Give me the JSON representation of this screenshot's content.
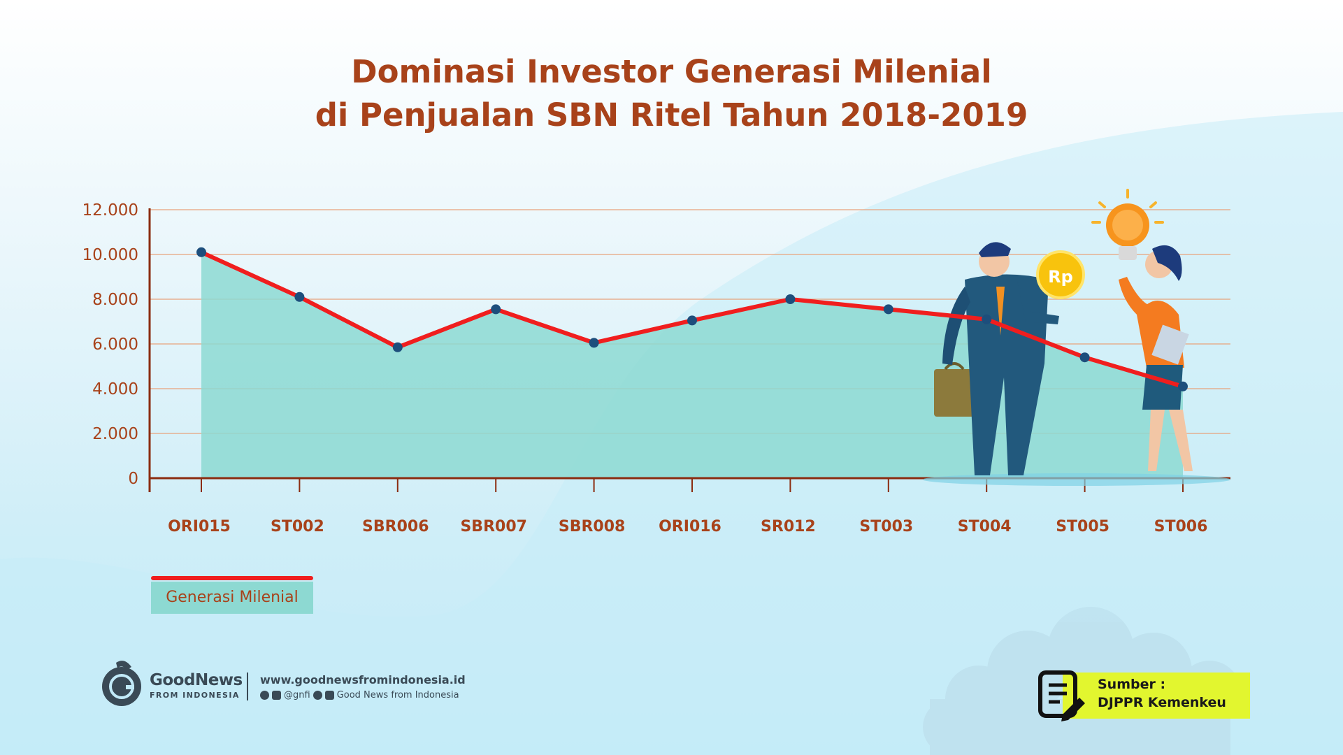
{
  "colors": {
    "title": "#a8421a",
    "line": "#f01e1e",
    "area": "#8dd9d2",
    "marker": "#1d4e7c",
    "source_box": "#e2f62f"
  },
  "chart_data": {
    "type": "area",
    "title_lines": [
      "Dominasi Investor Generasi Milenial",
      "di Penjualan SBN Ritel Tahun 2018-2019"
    ],
    "categories": [
      "ORI015",
      "ST002",
      "SBR006",
      "SBR007",
      "SBR008",
      "ORI016",
      "SR012",
      "ST003",
      "ST004",
      "ST005",
      "ST006"
    ],
    "series": [
      {
        "name": "Generasi Milenial",
        "values": [
          10100,
          8100,
          5850,
          7550,
          6050,
          7050,
          8000,
          7550,
          7100,
          5400,
          4100
        ]
      }
    ],
    "y_ticks": [
      "0",
      "2.000",
      "4.000",
      "6.000",
      "8.000",
      "10.000",
      "12.000"
    ],
    "ylim": [
      0,
      12000
    ],
    "grid": true,
    "legend_position": "bottom-left"
  },
  "legend": {
    "label": "Generasi Milenial"
  },
  "footer": {
    "brand_name": "GoodNews",
    "brand_sub": "FROM INDONESIA",
    "website": "www.goodnewsfromindonesia.id",
    "handle": "@gnfi",
    "channel": "Good News from Indonesia"
  },
  "source": {
    "label": "Sumber :",
    "value": "DJPPR Kemenkeu"
  },
  "illustration": {
    "coin_text": "Rp"
  }
}
